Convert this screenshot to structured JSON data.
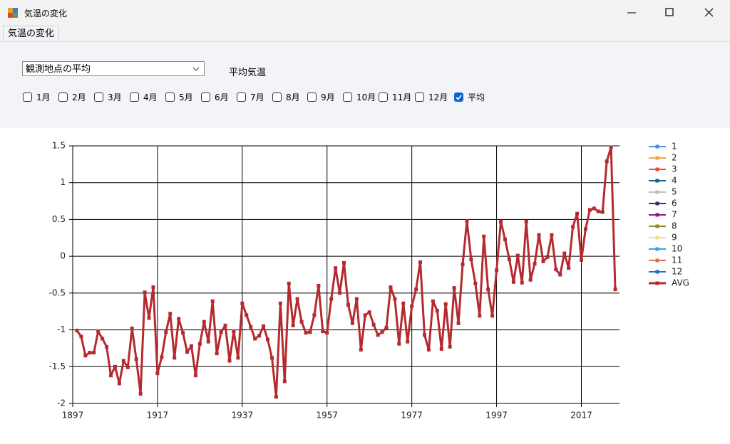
{
  "window": {
    "title": "気温の変化"
  },
  "tab": {
    "label": "気温の変化"
  },
  "controls": {
    "station": "観測地点の平均",
    "caption": "平均気温",
    "checkboxes": [
      {
        "label": "1月",
        "checked": false
      },
      {
        "label": "2月",
        "checked": false
      },
      {
        "label": "3月",
        "checked": false
      },
      {
        "label": "4月",
        "checked": false
      },
      {
        "label": "5月",
        "checked": false
      },
      {
        "label": "6月",
        "checked": false
      },
      {
        "label": "7月",
        "checked": false
      },
      {
        "label": "8月",
        "checked": false
      },
      {
        "label": "9月",
        "checked": false
      },
      {
        "label": "10月",
        "checked": false
      },
      {
        "label": "11月",
        "checked": false
      },
      {
        "label": "12月",
        "checked": false
      },
      {
        "label": "平均",
        "checked": true
      }
    ]
  },
  "chart_data": {
    "type": "line",
    "grid": true,
    "xlim": [
      1897,
      2026
    ],
    "xticks": [
      1897,
      1917,
      1937,
      1957,
      1977,
      1997,
      2017
    ],
    "ylim": [
      -2,
      1.5
    ],
    "yticks": [
      -2,
      -1.5,
      -1,
      -0.5,
      0,
      0.5,
      1,
      1.5
    ],
    "x": [
      1898,
      1899,
      1900,
      1901,
      1902,
      1903,
      1904,
      1905,
      1906,
      1907,
      1908,
      1909,
      1910,
      1911,
      1912,
      1913,
      1914,
      1915,
      1916,
      1917,
      1918,
      1919,
      1920,
      1921,
      1922,
      1923,
      1924,
      1925,
      1926,
      1927,
      1928,
      1929,
      1930,
      1931,
      1932,
      1933,
      1934,
      1935,
      1936,
      1937,
      1938,
      1939,
      1940,
      1941,
      1942,
      1943,
      1944,
      1945,
      1946,
      1947,
      1948,
      1949,
      1950,
      1951,
      1952,
      1953,
      1954,
      1955,
      1956,
      1957,
      1958,
      1959,
      1960,
      1961,
      1962,
      1963,
      1964,
      1965,
      1966,
      1967,
      1968,
      1969,
      1970,
      1971,
      1972,
      1973,
      1974,
      1975,
      1976,
      1977,
      1978,
      1979,
      1980,
      1981,
      1982,
      1983,
      1984,
      1985,
      1986,
      1987,
      1988,
      1989,
      1990,
      1991,
      1992,
      1993,
      1994,
      1995,
      1996,
      1997,
      1998,
      1999,
      2000,
      2001,
      2002,
      2003,
      2004,
      2005,
      2006,
      2007,
      2008,
      2009,
      2010,
      2011,
      2012,
      2013,
      2014,
      2015,
      2016,
      2017,
      2018,
      2019,
      2020,
      2021,
      2022,
      2023,
      2024,
      2025
    ],
    "series": [
      {
        "name": "AVG",
        "color": "#b52a2e",
        "values": [
          -1.01,
          -1.09,
          -1.35,
          -1.31,
          -1.31,
          -1.02,
          -1.12,
          -1.23,
          -1.62,
          -1.5,
          -1.73,
          -1.42,
          -1.51,
          -0.98,
          -1.4,
          -1.87,
          -0.49,
          -0.84,
          -0.42,
          -1.59,
          -1.37,
          -1.03,
          -0.78,
          -1.38,
          -0.85,
          -1.04,
          -1.3,
          -1.22,
          -1.62,
          -1.19,
          -0.89,
          -1.16,
          -0.61,
          -1.32,
          -1.03,
          -0.94,
          -1.42,
          -1.02,
          -1.38,
          -0.64,
          -0.8,
          -0.96,
          -1.12,
          -1.08,
          -0.95,
          -1.13,
          -1.38,
          -1.91,
          -0.64,
          -1.7,
          -0.37,
          -0.94,
          -0.58,
          -0.89,
          -1.04,
          -1.03,
          -0.8,
          -0.4,
          -1.02,
          -1.04,
          -0.58,
          -0.16,
          -0.5,
          -0.09,
          -0.66,
          -0.91,
          -0.58,
          -1.27,
          -0.8,
          -0.76,
          -0.93,
          -1.07,
          -1.03,
          -0.97,
          -0.42,
          -0.58,
          -1.19,
          -0.64,
          -1.16,
          -0.68,
          -0.45,
          -0.08,
          -1.07,
          -1.27,
          -0.61,
          -0.74,
          -1.26,
          -0.65,
          -1.23,
          -0.43,
          -0.91,
          -0.11,
          0.48,
          -0.04,
          -0.37,
          -0.81,
          0.27,
          -0.45,
          -0.81,
          -0.19,
          0.47,
          0.23,
          -0.04,
          -0.35,
          0.01,
          -0.36,
          0.47,
          -0.32,
          -0.1,
          0.29,
          -0.07,
          -0.01,
          0.29,
          -0.18,
          -0.25,
          0.04,
          -0.16,
          0.4,
          0.58,
          -0.05,
          0.37,
          0.63,
          0.65,
          0.61,
          0.6,
          1.29,
          1.48,
          -0.45
        ]
      }
    ],
    "legend": [
      {
        "name": "1",
        "color": "#4a90e2"
      },
      {
        "name": "2",
        "color": "#f5a742"
      },
      {
        "name": "3",
        "color": "#e8502a"
      },
      {
        "name": "4",
        "color": "#1f5f8b"
      },
      {
        "name": "5",
        "color": "#c0c0c0"
      },
      {
        "name": "6",
        "color": "#2a3f5f"
      },
      {
        "name": "7",
        "color": "#8b1a8b"
      },
      {
        "name": "8",
        "color": "#8b8b2a"
      },
      {
        "name": "9",
        "color": "#f5e08b"
      },
      {
        "name": "10",
        "color": "#3fa0e0"
      },
      {
        "name": "11",
        "color": "#e07050"
      },
      {
        "name": "12",
        "color": "#1f6fd0"
      },
      {
        "name": "AVG",
        "color": "#b52a2e"
      }
    ]
  }
}
